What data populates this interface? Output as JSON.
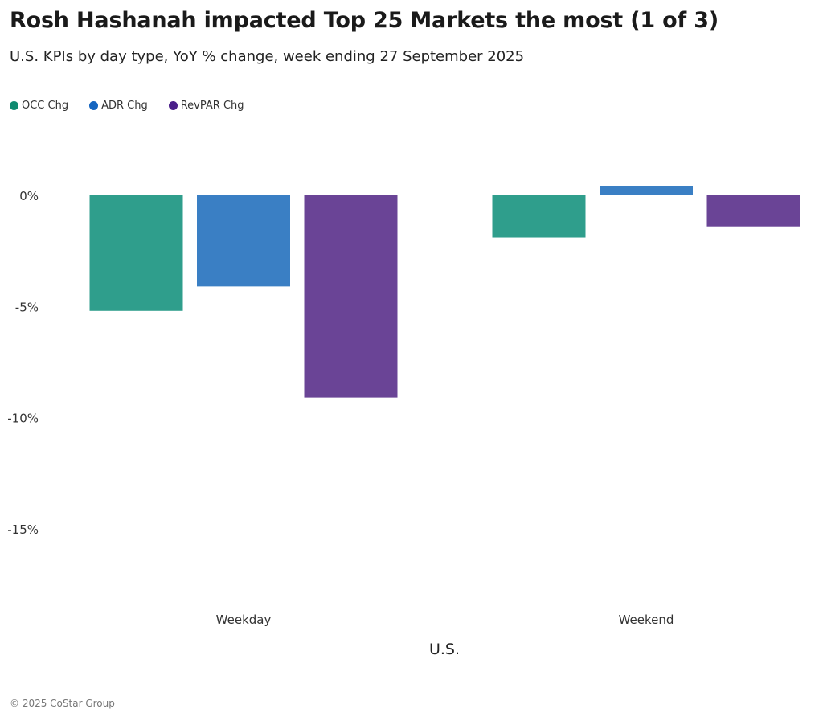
{
  "title": "Rosh Hashanah impacted Top 25 Markets the most (1 of 3)",
  "subtitle": "U.S. KPIs by day type, YoY % change, week ending 27 September 2025",
  "footer": "© 2025 CoStar Group",
  "chart_data": {
    "type": "bar",
    "title": "Rosh Hashanah impacted Top 25 Markets the most (1 of 3)",
    "xlabel": "U.S.",
    "ylabel": "",
    "categories": [
      "Weekday",
      "Weekend"
    ],
    "series": [
      {
        "name": "OCC Chg",
        "color": "#2f9e8c",
        "legend_color": "#0f8a70",
        "values": [
          -5.2,
          -1.9
        ]
      },
      {
        "name": "ADR Chg",
        "color": "#3a7fc4",
        "legend_color": "#1565c0",
        "values": [
          -4.1,
          0.4
        ]
      },
      {
        "name": "RevPAR Chg",
        "color": "#6a4496",
        "legend_color": "#4a1f8a",
        "values": [
          -9.1,
          -1.4
        ]
      }
    ],
    "yticks": [
      0,
      -5,
      -10,
      -15
    ],
    "ytick_labels": [
      "0%",
      "-5%",
      "-10%",
      "-15%"
    ],
    "ylim": [
      -18.6,
      2.5
    ],
    "grid": false,
    "legend_position": "top-left"
  }
}
